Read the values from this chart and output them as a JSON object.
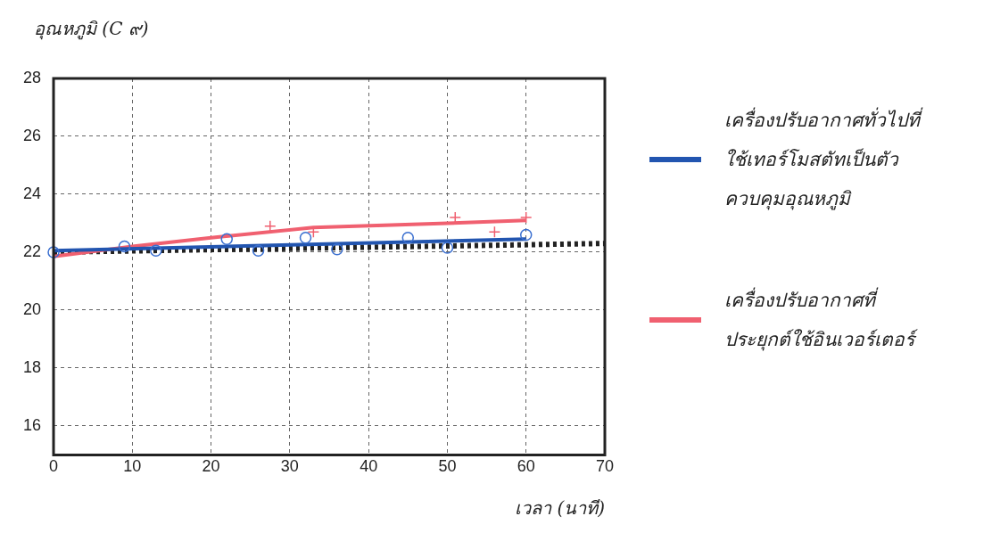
{
  "chart_data": {
    "type": "line",
    "ylabel": "อุณหภูมิ (C ๙)",
    "xlabel": "เวลา (นาที)",
    "xlim": [
      0,
      70
    ],
    "xticks": [
      0,
      10,
      20,
      30,
      40,
      50,
      60,
      70
    ],
    "ylim": [
      15,
      28
    ],
    "yticks": [
      16,
      18,
      20,
      22,
      24,
      26,
      28
    ],
    "grid": true,
    "legend": "right",
    "series": [
      {
        "name": "เครื่องปรับอากาศทั่วไปที่ใช้เทอร์โมสตัทเป็นตัวควบคุมอุณหภูมิ",
        "type": "line",
        "color": "#2255b0",
        "marker": "none",
        "line_style": "solid",
        "x": [
          0,
          60
        ],
        "values": [
          22.05,
          22.45
        ]
      },
      {
        "name": "เครื่องปรับอากาศที่ประยุกต์ใช้อินเวอร์เตอร์",
        "type": "line",
        "color": "#f06070",
        "marker": "none",
        "line_style": "solid",
        "x": [
          0,
          10,
          20,
          33,
          50,
          60
        ],
        "values": [
          21.85,
          22.2,
          22.5,
          22.85,
          23.0,
          23.1
        ]
      },
      {
        "type": "scatter",
        "color": "#3a6fd0",
        "marker": "circle",
        "x": [
          0,
          9,
          13,
          22,
          26,
          32,
          36,
          45,
          50,
          60
        ],
        "values": [
          22.0,
          22.2,
          22.05,
          22.45,
          22.05,
          22.5,
          22.1,
          22.5,
          22.15,
          22.6
        ]
      },
      {
        "type": "scatter",
        "color": "#f06070",
        "marker": "cross",
        "x": [
          27.5,
          33,
          51,
          56,
          60
        ],
        "values": [
          22.9,
          22.7,
          23.2,
          22.7,
          23.2
        ]
      },
      {
        "type": "line",
        "color": "#222222",
        "marker": "none",
        "line_style": "dotted",
        "x": [
          0,
          70
        ],
        "values": [
          22.0,
          22.3
        ]
      }
    ]
  }
}
